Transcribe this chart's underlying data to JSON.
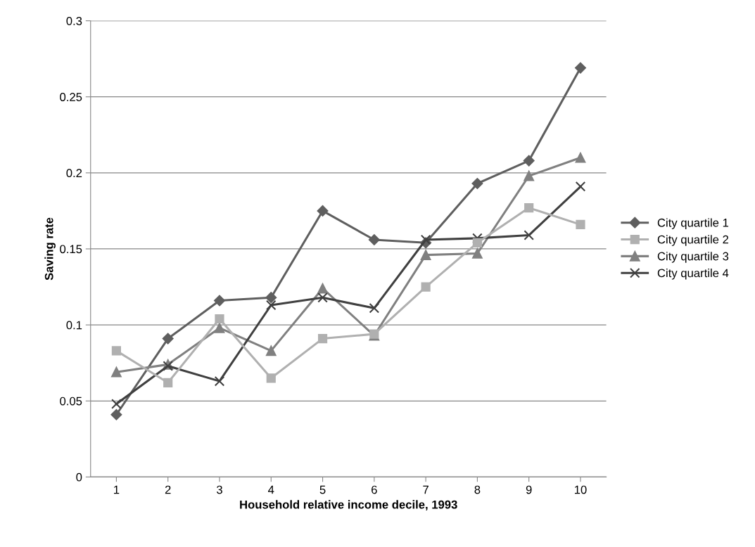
{
  "chart_data": {
    "type": "line",
    "xlabel": "Household relative income decile, 1993",
    "ylabel": "Saving rate",
    "categories": [
      "1",
      "2",
      "3",
      "4",
      "5",
      "6",
      "7",
      "8",
      "9",
      "10"
    ],
    "series": [
      {
        "name": "City quartile 1",
        "color": "#5f5f5f",
        "marker": "diamond",
        "values": [
          0.041,
          0.091,
          0.116,
          0.118,
          0.175,
          0.156,
          0.154,
          0.193,
          0.208,
          0.269
        ]
      },
      {
        "name": "City quartile 2",
        "color": "#b0b0b0",
        "marker": "square",
        "values": [
          0.083,
          0.062,
          0.104,
          0.065,
          0.091,
          0.094,
          0.125,
          0.154,
          0.177,
          0.166
        ]
      },
      {
        "name": "City quartile 3",
        "color": "#808080",
        "marker": "triangle",
        "values": [
          0.069,
          0.074,
          0.098,
          0.083,
          0.124,
          0.093,
          0.146,
          0.147,
          0.198,
          0.21
        ]
      },
      {
        "name": "City quartile 4",
        "color": "#404040",
        "marker": "cross",
        "values": [
          0.048,
          0.073,
          0.063,
          0.113,
          0.118,
          0.111,
          0.156,
          0.157,
          0.159,
          0.191
        ]
      }
    ],
    "ylim": [
      0,
      0.3
    ],
    "yticks": [
      0,
      0.05,
      0.1,
      0.15,
      0.2,
      0.25,
      0.3
    ],
    "grid": "y",
    "legend": "right"
  }
}
